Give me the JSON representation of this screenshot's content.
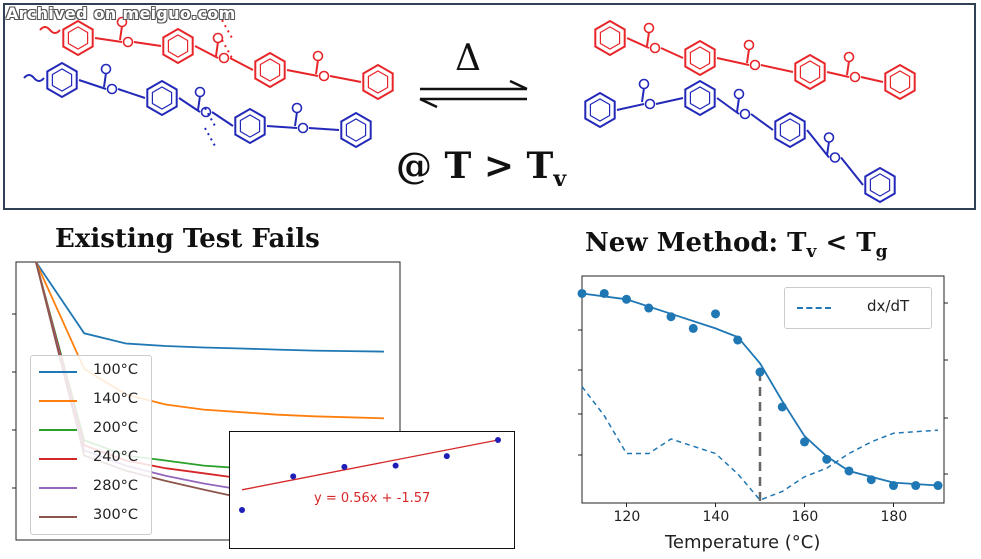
{
  "watermark": "Archived on meiguo.com",
  "header": {
    "delta_symbol": "Δ",
    "condition_prefix": "@ T > T",
    "condition_sub": "v",
    "reaction_colors": {
      "chain_a": "#e8262a",
      "chain_b": "#2329b8"
    }
  },
  "left_panel": {
    "title": "Existing Test Fails",
    "legend": [
      {
        "label": "100°C",
        "color": "#1f77b4"
      },
      {
        "label": "140°C",
        "color": "#ff7f0e"
      },
      {
        "label": "200°C",
        "color": "#2ca02c"
      },
      {
        "label": "240°C",
        "color": "#d62728"
      },
      {
        "label": "280°C",
        "color": "#9467bd"
      },
      {
        "label": "300°C",
        "color": "#8c564b"
      }
    ],
    "inset": {
      "equation": "y = 0.56x + -1.57"
    }
  },
  "right_panel": {
    "title_prefix": "New Method: T",
    "title_sub_v": "v",
    "title_lt": " < T",
    "title_sub_g": "g",
    "legend_label": "dx/dT",
    "xlabel": "Temperature (°C)",
    "xticks": [
      "120",
      "140",
      "160",
      "180"
    ],
    "marker_temperature": 150
  },
  "chart_data": [
    {
      "type": "line",
      "title": "Existing Test Fails",
      "series": [
        {
          "name": "100°C",
          "values": [
            1.0,
            0.86,
            0.84,
            0.835,
            0.832,
            0.83,
            0.828,
            0.826,
            0.825,
            0.824
          ]
        },
        {
          "name": "140°C",
          "values": [
            1.0,
            0.79,
            0.74,
            0.72,
            0.71,
            0.705,
            0.7,
            0.697,
            0.695,
            0.693
          ]
        },
        {
          "name": "200°C",
          "values": [
            1.0,
            0.65,
            0.62,
            0.61,
            0.6,
            0.595,
            0.59,
            0.587,
            0.585,
            0.583
          ]
        },
        {
          "name": "240°C",
          "values": [
            1.0,
            0.64,
            0.61,
            0.595,
            0.585,
            0.575,
            0.567,
            0.56,
            0.555,
            0.55
          ]
        },
        {
          "name": "280°C",
          "values": [
            1.0,
            0.63,
            0.6,
            0.58,
            0.565,
            0.553,
            0.543,
            0.535,
            0.527,
            0.52
          ]
        },
        {
          "name": "300°C",
          "values": [
            1.0,
            0.62,
            0.59,
            0.57,
            0.553,
            0.537,
            0.522,
            0.51,
            0.5,
            0.49
          ]
        }
      ]
    },
    {
      "type": "scatter",
      "title": "",
      "equation": "y = 0.56x + -1.57",
      "points": [
        [
          1,
          0.2
        ],
        [
          2,
          0.45
        ],
        [
          3,
          0.52
        ],
        [
          4,
          0.53
        ],
        [
          5,
          0.6
        ],
        [
          6,
          0.72
        ]
      ],
      "fit": {
        "slope": 0.56,
        "intercept": -1.57
      }
    },
    {
      "type": "scatter",
      "title": "New Method: Tv < Tg",
      "xlabel": "Temperature (°C)",
      "xlim": [
        110,
        190
      ],
      "points": [
        [
          110,
          0.92
        ],
        [
          115,
          0.92
        ],
        [
          120,
          0.9
        ],
        [
          125,
          0.87
        ],
        [
          130,
          0.84
        ],
        [
          135,
          0.8
        ],
        [
          140,
          0.85
        ],
        [
          145,
          0.76
        ],
        [
          150,
          0.65
        ],
        [
          155,
          0.53
        ],
        [
          160,
          0.41
        ],
        [
          165,
          0.35
        ],
        [
          170,
          0.31
        ],
        [
          175,
          0.28
        ],
        [
          180,
          0.26
        ],
        [
          185,
          0.26
        ],
        [
          190,
          0.26
        ]
      ],
      "fit_line": [
        [
          110,
          0.92
        ],
        [
          120,
          0.9
        ],
        [
          130,
          0.85
        ],
        [
          140,
          0.8
        ],
        [
          145,
          0.77
        ],
        [
          150,
          0.68
        ],
        [
          155,
          0.55
        ],
        [
          160,
          0.43
        ],
        [
          165,
          0.36
        ],
        [
          170,
          0.31
        ],
        [
          180,
          0.27
        ],
        [
          190,
          0.26
        ]
      ],
      "derivative": {
        "name": "dx/dT",
        "points": [
          [
            110,
            0.6
          ],
          [
            115,
            0.5
          ],
          [
            120,
            0.37
          ],
          [
            125,
            0.37
          ],
          [
            130,
            0.42
          ],
          [
            140,
            0.37
          ],
          [
            145,
            0.3
          ],
          [
            150,
            0.21
          ],
          [
            155,
            0.24
          ],
          [
            160,
            0.29
          ],
          [
            165,
            0.32
          ],
          [
            170,
            0.37
          ],
          [
            175,
            0.41
          ],
          [
            180,
            0.44
          ],
          [
            190,
            0.45
          ]
        ]
      }
    }
  ]
}
